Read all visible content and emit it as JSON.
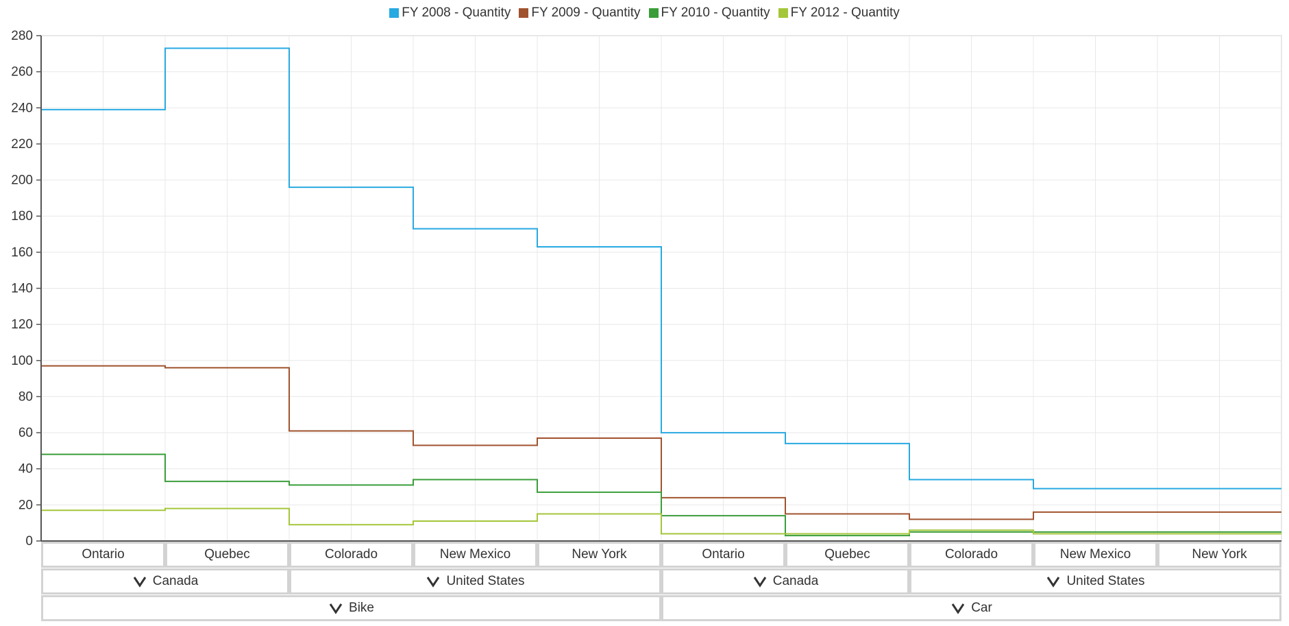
{
  "legend": [
    {
      "label": "FY 2008 - Quantity",
      "color": "#27a9e1"
    },
    {
      "label": "FY 2009 - Quantity",
      "color": "#a0522d"
    },
    {
      "label": "FY 2010 - Quantity",
      "color": "#3a9d3a"
    },
    {
      "label": "FY 2012 - Quantity",
      "color": "#a4c639"
    }
  ],
  "axis_rows": {
    "level1": [
      "Ontario",
      "Quebec",
      "Colorado",
      "New Mexico",
      "New York",
      "Ontario",
      "Quebec",
      "Colorado",
      "New Mexico",
      "New York"
    ],
    "level2": [
      "Canada",
      "United States",
      "Canada",
      "United States"
    ],
    "level3": [
      "Bike",
      "Car"
    ]
  },
  "chart_data": {
    "type": "line",
    "step": true,
    "categories": [
      "Ontario",
      "Quebec",
      "Colorado",
      "New Mexico",
      "New York",
      "Ontario",
      "Quebec",
      "Colorado",
      "New Mexico",
      "New York"
    ],
    "ylim": [
      0,
      280
    ],
    "yticks": [
      0,
      20,
      40,
      60,
      80,
      100,
      120,
      140,
      160,
      180,
      200,
      220,
      240,
      260,
      280
    ],
    "grid": true,
    "legend_position": "top",
    "series": [
      {
        "name": "FY 2008 - Quantity",
        "color": "#27a9e1",
        "values": [
          239,
          273,
          196,
          173,
          163,
          60,
          54,
          34,
          29,
          29
        ]
      },
      {
        "name": "FY 2009 - Quantity",
        "color": "#a0522d",
        "values": [
          97,
          96,
          61,
          53,
          57,
          24,
          15,
          12,
          16,
          16
        ]
      },
      {
        "name": "FY 2010 - Quantity",
        "color": "#3a9d3a",
        "values": [
          48,
          33,
          31,
          34,
          27,
          14,
          3,
          5,
          5,
          5
        ]
      },
      {
        "name": "FY 2012 - Quantity",
        "color": "#a4c639",
        "values": [
          17,
          18,
          9,
          11,
          15,
          4,
          4,
          6,
          4,
          4
        ]
      }
    ]
  }
}
